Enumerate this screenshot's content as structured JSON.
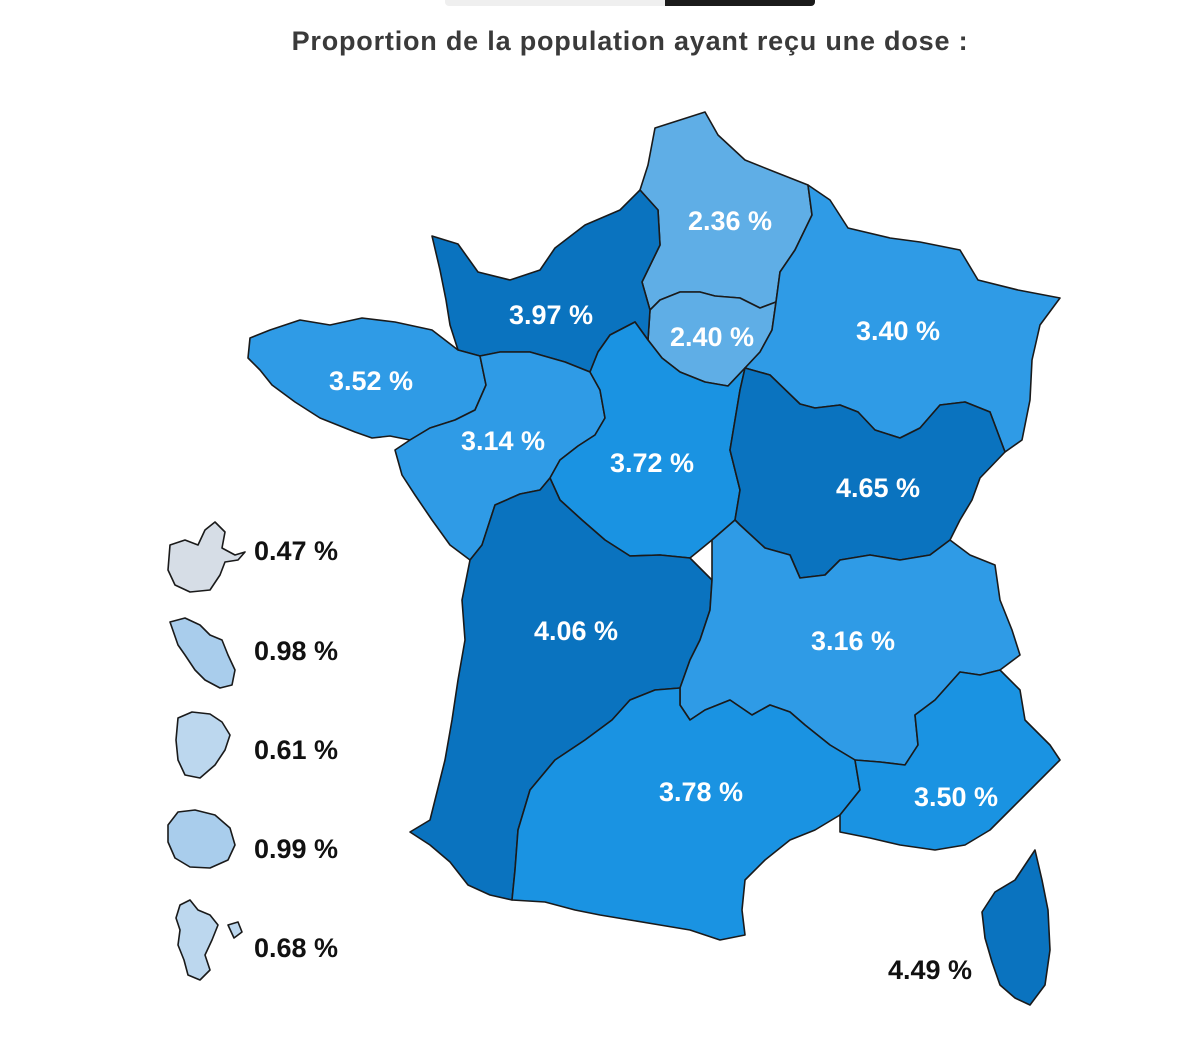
{
  "title": "Proportion de la population ayant reçu une dose :",
  "colors": {
    "lightest": "#5faee6",
    "light": "#2f9be6",
    "medium": "#1a93e2",
    "dark": "#0a73bf",
    "dom_grey": "#d6dde6",
    "dom_light": "#a9cdec",
    "dom_pale": "#bcd7ee"
  },
  "regions": [
    {
      "name": "Hauts-de-France",
      "value": "2.36 %"
    },
    {
      "name": "Île-de-France",
      "value": "2.40 %"
    },
    {
      "name": "Normandie",
      "value": "3.97 %"
    },
    {
      "name": "Grand Est",
      "value": "3.40 %"
    },
    {
      "name": "Bretagne",
      "value": "3.52 %"
    },
    {
      "name": "Pays de la Loire",
      "value": "3.14 %"
    },
    {
      "name": "Centre-Val de Loire",
      "value": "3.72 %"
    },
    {
      "name": "Bourgogne-Franche-Comté",
      "value": "4.65 %"
    },
    {
      "name": "Nouvelle-Aquitaine",
      "value": "4.06 %"
    },
    {
      "name": "Auvergne-Rhône-Alpes",
      "value": "3.16 %"
    },
    {
      "name": "Occitanie",
      "value": "3.78 %"
    },
    {
      "name": "Provence-Alpes-Côte d'Azur",
      "value": "3.50 %"
    },
    {
      "name": "Corse",
      "value": "4.49 %"
    }
  ],
  "overseas": [
    {
      "name": "Guadeloupe",
      "value": "0.47 %"
    },
    {
      "name": "Martinique",
      "value": "0.98 %"
    },
    {
      "name": "Guyane",
      "value": "0.61 %"
    },
    {
      "name": "La Réunion",
      "value": "0.99 %"
    },
    {
      "name": "Mayotte",
      "value": "0.68 %"
    }
  ]
}
